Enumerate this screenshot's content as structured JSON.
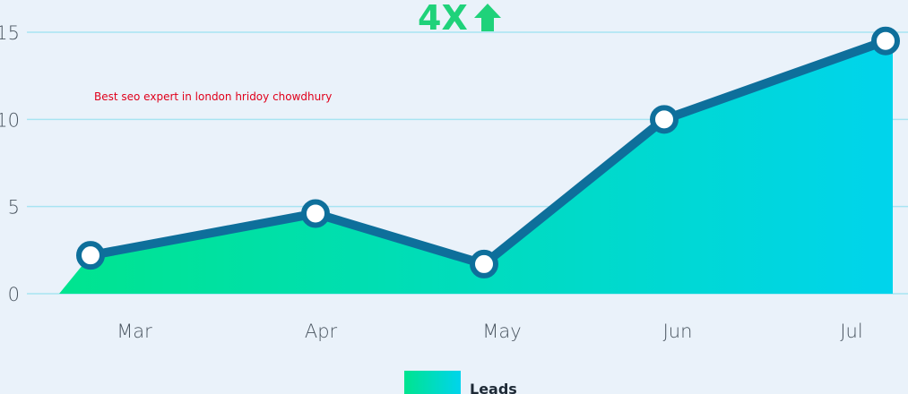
{
  "chart_data": {
    "type": "area",
    "title": "",
    "headline": "4X",
    "annotation": "Best seo expert in london hridoy chowdhury",
    "categories": [
      "Mar",
      "Apr",
      "May",
      "Jun",
      "Jul"
    ],
    "series": [
      {
        "name": "Leads",
        "values": [
          2.2,
          4.6,
          1.7,
          10,
          14.5
        ],
        "line_color": "#0e6f9b",
        "fill_start": "#00e48f",
        "fill_end": "#00d4ec"
      }
    ],
    "yticks": [
      0,
      5,
      10,
      15
    ],
    "ylim": [
      0,
      15
    ],
    "grid": true,
    "grid_color": "#a8e4f2",
    "legend_position": "bottom",
    "xlabel": "",
    "ylabel": ""
  },
  "colors": {
    "background": "#eaf2fa",
    "headline": "#1fd27a",
    "annotation": "#e0001b"
  },
  "icons": {
    "headline_icon": "up-arrow-icon"
  }
}
